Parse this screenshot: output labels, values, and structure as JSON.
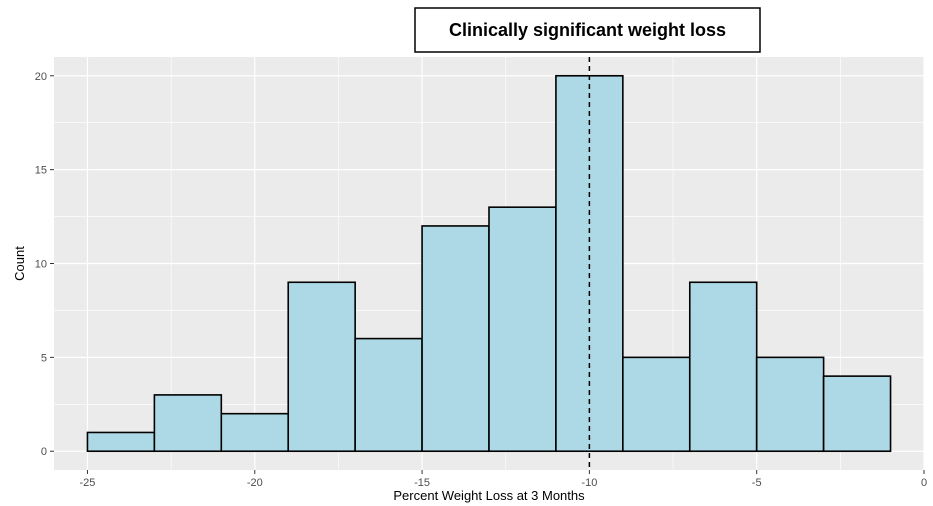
{
  "chart_data": {
    "type": "bar",
    "title": "",
    "xlabel": "Percent Weight Loss at 3 Months",
    "ylabel": "Count",
    "xlim": [
      -26,
      0
    ],
    "ylim": [
      -1,
      21
    ],
    "x_ticks": [
      -25,
      -20,
      -15,
      -10,
      -5,
      0
    ],
    "x_tick_labels": [
      "-25",
      "-20",
      "-15",
      "-10",
      "-5",
      "0"
    ],
    "y_ticks": [
      0,
      5,
      10,
      15,
      20
    ],
    "y_tick_labels": [
      "0",
      "5",
      "10",
      "15",
      "20"
    ],
    "bins": [
      {
        "x0": -25,
        "x1": -23,
        "count": 1
      },
      {
        "x0": -23,
        "x1": -21,
        "count": 3
      },
      {
        "x0": -21,
        "x1": -19,
        "count": 2
      },
      {
        "x0": -19,
        "x1": -17,
        "count": 9
      },
      {
        "x0": -17,
        "x1": -15,
        "count": 6
      },
      {
        "x0": -15,
        "x1": -13,
        "count": 12
      },
      {
        "x0": -13,
        "x1": -11,
        "count": 13
      },
      {
        "x0": -11,
        "x1": -9,
        "count": 20
      },
      {
        "x0": -9,
        "x1": -7,
        "count": 5
      },
      {
        "x0": -7,
        "x1": -5,
        "count": 9
      },
      {
        "x0": -5,
        "x1": -3,
        "count": 5
      },
      {
        "x0": -3,
        "x1": -1,
        "count": 4
      }
    ],
    "reference_line": {
      "x": -10,
      "style": "dashed"
    },
    "annotation": "Clinically significant weight loss",
    "grid": true,
    "colors": {
      "panel_background": "#ebebeb",
      "gridline": "#ffffff",
      "bar_fill": "#add8e6",
      "bar_outline": "#000000"
    }
  }
}
